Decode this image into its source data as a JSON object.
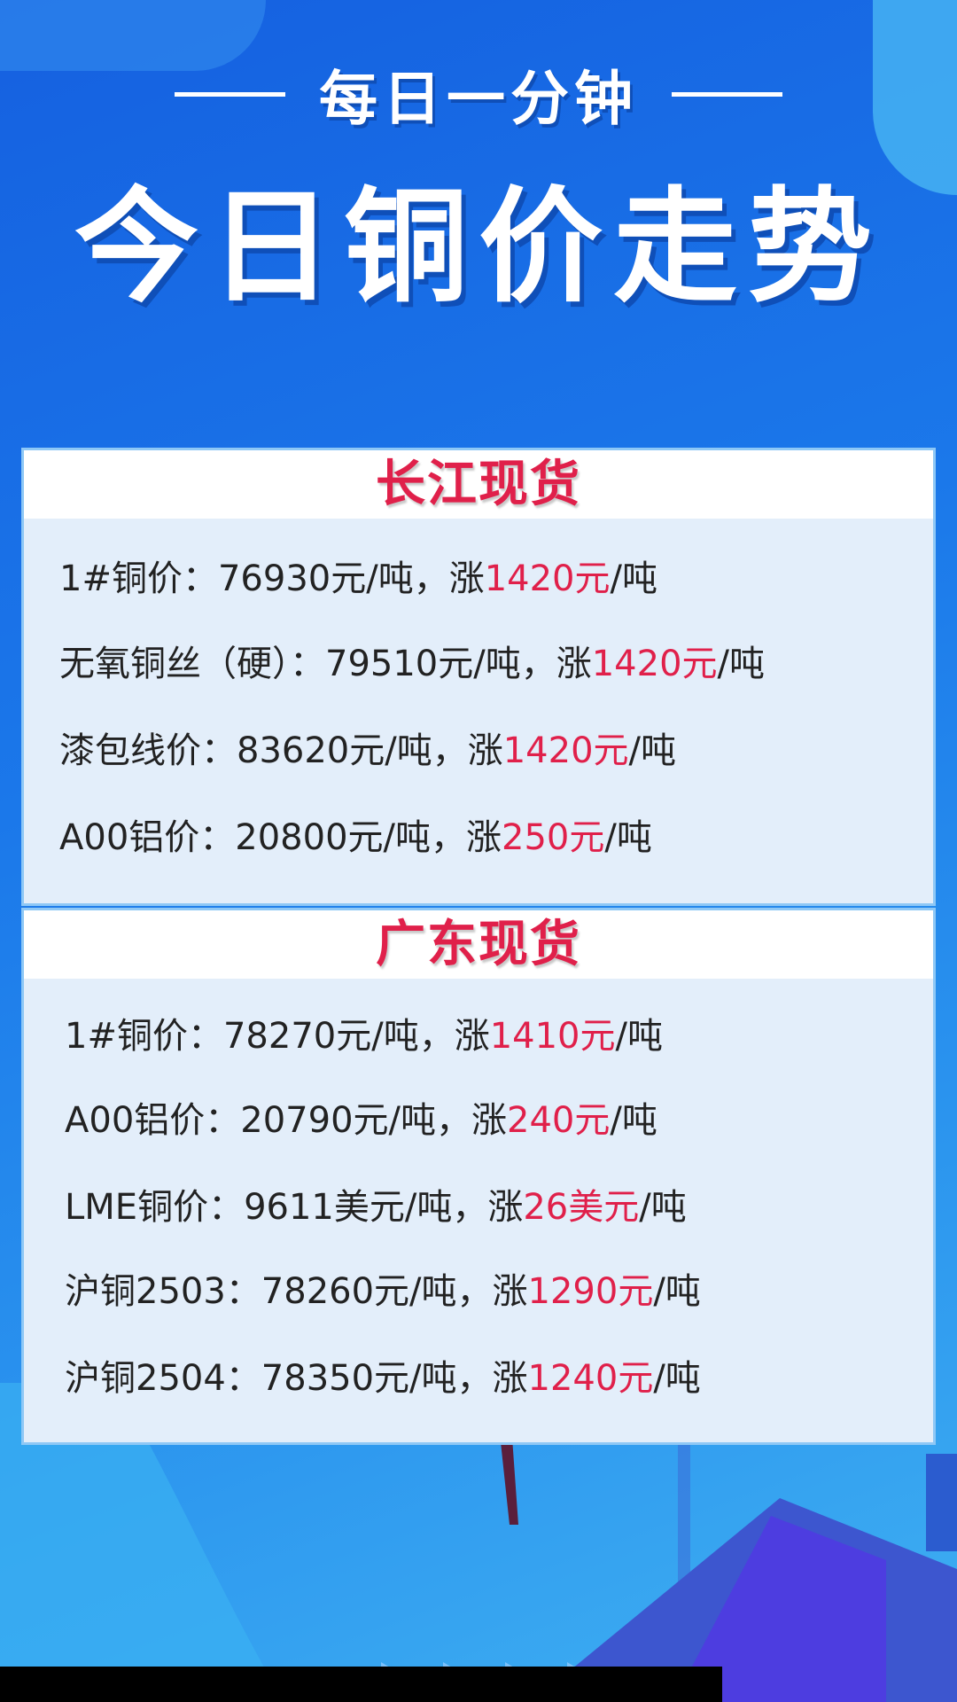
{
  "header": {
    "subtitle": "每日一分钟",
    "title": "今日铜价走势"
  },
  "sections": [
    {
      "title": "长江现货",
      "rows": [
        {
          "label": "1#铜价：",
          "price": "76930元/吨，涨",
          "change": "1420元",
          "unit": "/吨"
        },
        {
          "label": "无氧铜丝（硬）：",
          "price": "79510元/吨，涨",
          "change": "1420元",
          "unit": "/吨"
        },
        {
          "label": "漆包线价：",
          "price": "83620元/吨，涨",
          "change": "1420元",
          "unit": "/吨"
        },
        {
          "label": "A00铝价：",
          "price": "20800元/吨，涨",
          "change": "250元",
          "unit": "/吨"
        }
      ]
    },
    {
      "title": "广东现货",
      "rows": [
        {
          "label": "1#铜价：",
          "price": "78270元/吨，涨",
          "change": "1410元",
          "unit": "/吨"
        },
        {
          "label": "A00铝价：",
          "price": "20790元/吨，涨",
          "change": "240元",
          "unit": "/吨"
        },
        {
          "label": "LME铜价：",
          "price": "9611美元/吨，涨",
          "change": "26美元",
          "unit": "/吨"
        },
        {
          "label": "沪铜2503：",
          "price": "78260元/吨，涨",
          "change": "1290元",
          "unit": "/吨"
        },
        {
          "label": "沪铜2504：",
          "price": "78350元/吨，涨",
          "change": "1240元",
          "unit": "/吨"
        }
      ]
    }
  ],
  "colors": {
    "accent_red": "#e0204a",
    "background_blue": "#1b78ea",
    "card_bg": "#e3eefa"
  }
}
